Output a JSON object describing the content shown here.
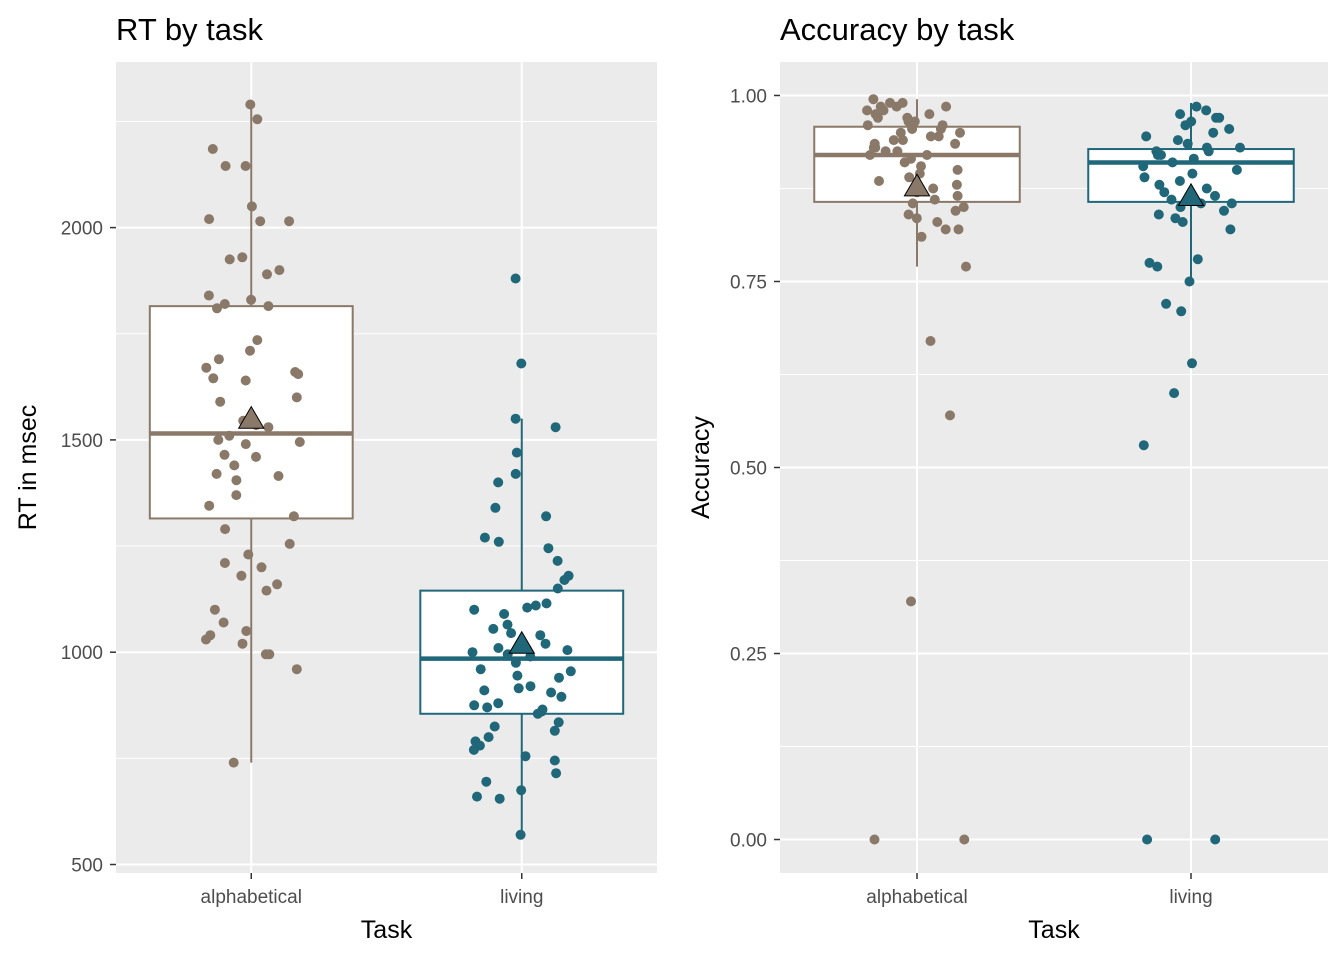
{
  "colors": {
    "alphabetical": "#8a7968",
    "living": "#1f6779",
    "panel_bg": "#ebebeb",
    "grid": "#ffffff",
    "tick_text": "#4d4d4d"
  },
  "chart_data": [
    {
      "type": "box",
      "title": "RT by task",
      "xlabel": "Task",
      "ylabel": "RT in msec",
      "categories": [
        "alphabetical",
        "living"
      ],
      "ylim": [
        480,
        2390
      ],
      "yticks": [
        500,
        1000,
        1500,
        2000
      ],
      "grid": true,
      "legend": "none",
      "boxes": [
        {
          "category": "alphabetical",
          "q1": 1315,
          "median": 1515,
          "q3": 1815,
          "whisker_low": 740,
          "whisker_high": 2300,
          "mean": 1550
        },
        {
          "category": "living",
          "q1": 855,
          "median": 985,
          "q3": 1145,
          "whisker_low": 570,
          "whisker_high": 1550,
          "mean": 1020
        }
      ],
      "points": [
        {
          "category": "alphabetical",
          "values": [
            2290,
            2255,
            2185,
            2145,
            2145,
            2050,
            2020,
            2015,
            2015,
            1930,
            1925,
            1900,
            1890,
            1840,
            1830,
            1820,
            1815,
            1810,
            1735,
            1710,
            1690,
            1670,
            1660,
            1655,
            1645,
            1640,
            1600,
            1590,
            1545,
            1535,
            1530,
            1510,
            1500,
            1495,
            1490,
            1465,
            1460,
            1440,
            1420,
            1415,
            1405,
            1370,
            1345,
            1320,
            1290,
            1255,
            1230,
            1210,
            1200,
            1180,
            1160,
            1145,
            1100,
            1070,
            1050,
            1040,
            1030,
            1020,
            995,
            995,
            960,
            740
          ]
        },
        {
          "category": "living",
          "values": [
            1880,
            1680,
            1550,
            1530,
            1470,
            1420,
            1400,
            1340,
            1320,
            1270,
            1260,
            1245,
            1215,
            1180,
            1170,
            1150,
            1115,
            1110,
            1105,
            1100,
            1090,
            1065,
            1055,
            1045,
            1040,
            1020,
            1010,
            1005,
            1000,
            995,
            990,
            975,
            960,
            955,
            945,
            940,
            920,
            915,
            910,
            905,
            895,
            880,
            875,
            870,
            865,
            860,
            855,
            835,
            825,
            815,
            800,
            790,
            780,
            770,
            755,
            745,
            715,
            695,
            675,
            660,
            655,
            570
          ]
        }
      ]
    },
    {
      "type": "box",
      "title": "Accuracy by task",
      "xlabel": "Task",
      "ylabel": "Accuracy",
      "categories": [
        "alphabetical",
        "living"
      ],
      "ylim": [
        -0.045,
        1.045
      ],
      "yticks": [
        "0.00",
        "0.25",
        "0.50",
        "0.75",
        "1.00"
      ],
      "grid": true,
      "legend": "none",
      "boxes": [
        {
          "category": "alphabetical",
          "q1": 0.857,
          "median": 0.92,
          "q3": 0.958,
          "whisker_low": 0.77,
          "whisker_high": 0.995,
          "mean": 0.878
        },
        {
          "category": "living",
          "q1": 0.857,
          "median": 0.91,
          "q3": 0.928,
          "whisker_low": 0.75,
          "whisker_high": 0.99,
          "mean": 0.865
        }
      ],
      "points": [
        {
          "category": "alphabetical",
          "values": [
            0.995,
            0.99,
            0.99,
            0.985,
            0.985,
            0.985,
            0.98,
            0.98,
            0.975,
            0.975,
            0.97,
            0.97,
            0.965,
            0.965,
            0.96,
            0.96,
            0.955,
            0.955,
            0.95,
            0.95,
            0.945,
            0.945,
            0.94,
            0.94,
            0.935,
            0.935,
            0.93,
            0.93,
            0.925,
            0.925,
            0.92,
            0.92,
            0.915,
            0.91,
            0.905,
            0.9,
            0.895,
            0.89,
            0.885,
            0.88,
            0.875,
            0.87,
            0.865,
            0.86,
            0.855,
            0.85,
            0.845,
            0.84,
            0.835,
            0.83,
            0.82,
            0.82,
            0.81,
            0.77,
            0.67,
            0.57,
            0.32,
            0.0,
            0.0
          ]
        },
        {
          "category": "living",
          "values": [
            0.985,
            0.98,
            0.975,
            0.97,
            0.97,
            0.965,
            0.96,
            0.955,
            0.95,
            0.945,
            0.94,
            0.935,
            0.93,
            0.93,
            0.925,
            0.925,
            0.92,
            0.92,
            0.915,
            0.91,
            0.905,
            0.9,
            0.895,
            0.89,
            0.885,
            0.88,
            0.875,
            0.87,
            0.865,
            0.86,
            0.855,
            0.855,
            0.85,
            0.845,
            0.84,
            0.835,
            0.83,
            0.82,
            0.78,
            0.775,
            0.77,
            0.75,
            0.72,
            0.71,
            0.64,
            0.6,
            0.53,
            0.0,
            0.0
          ]
        }
      ]
    }
  ]
}
